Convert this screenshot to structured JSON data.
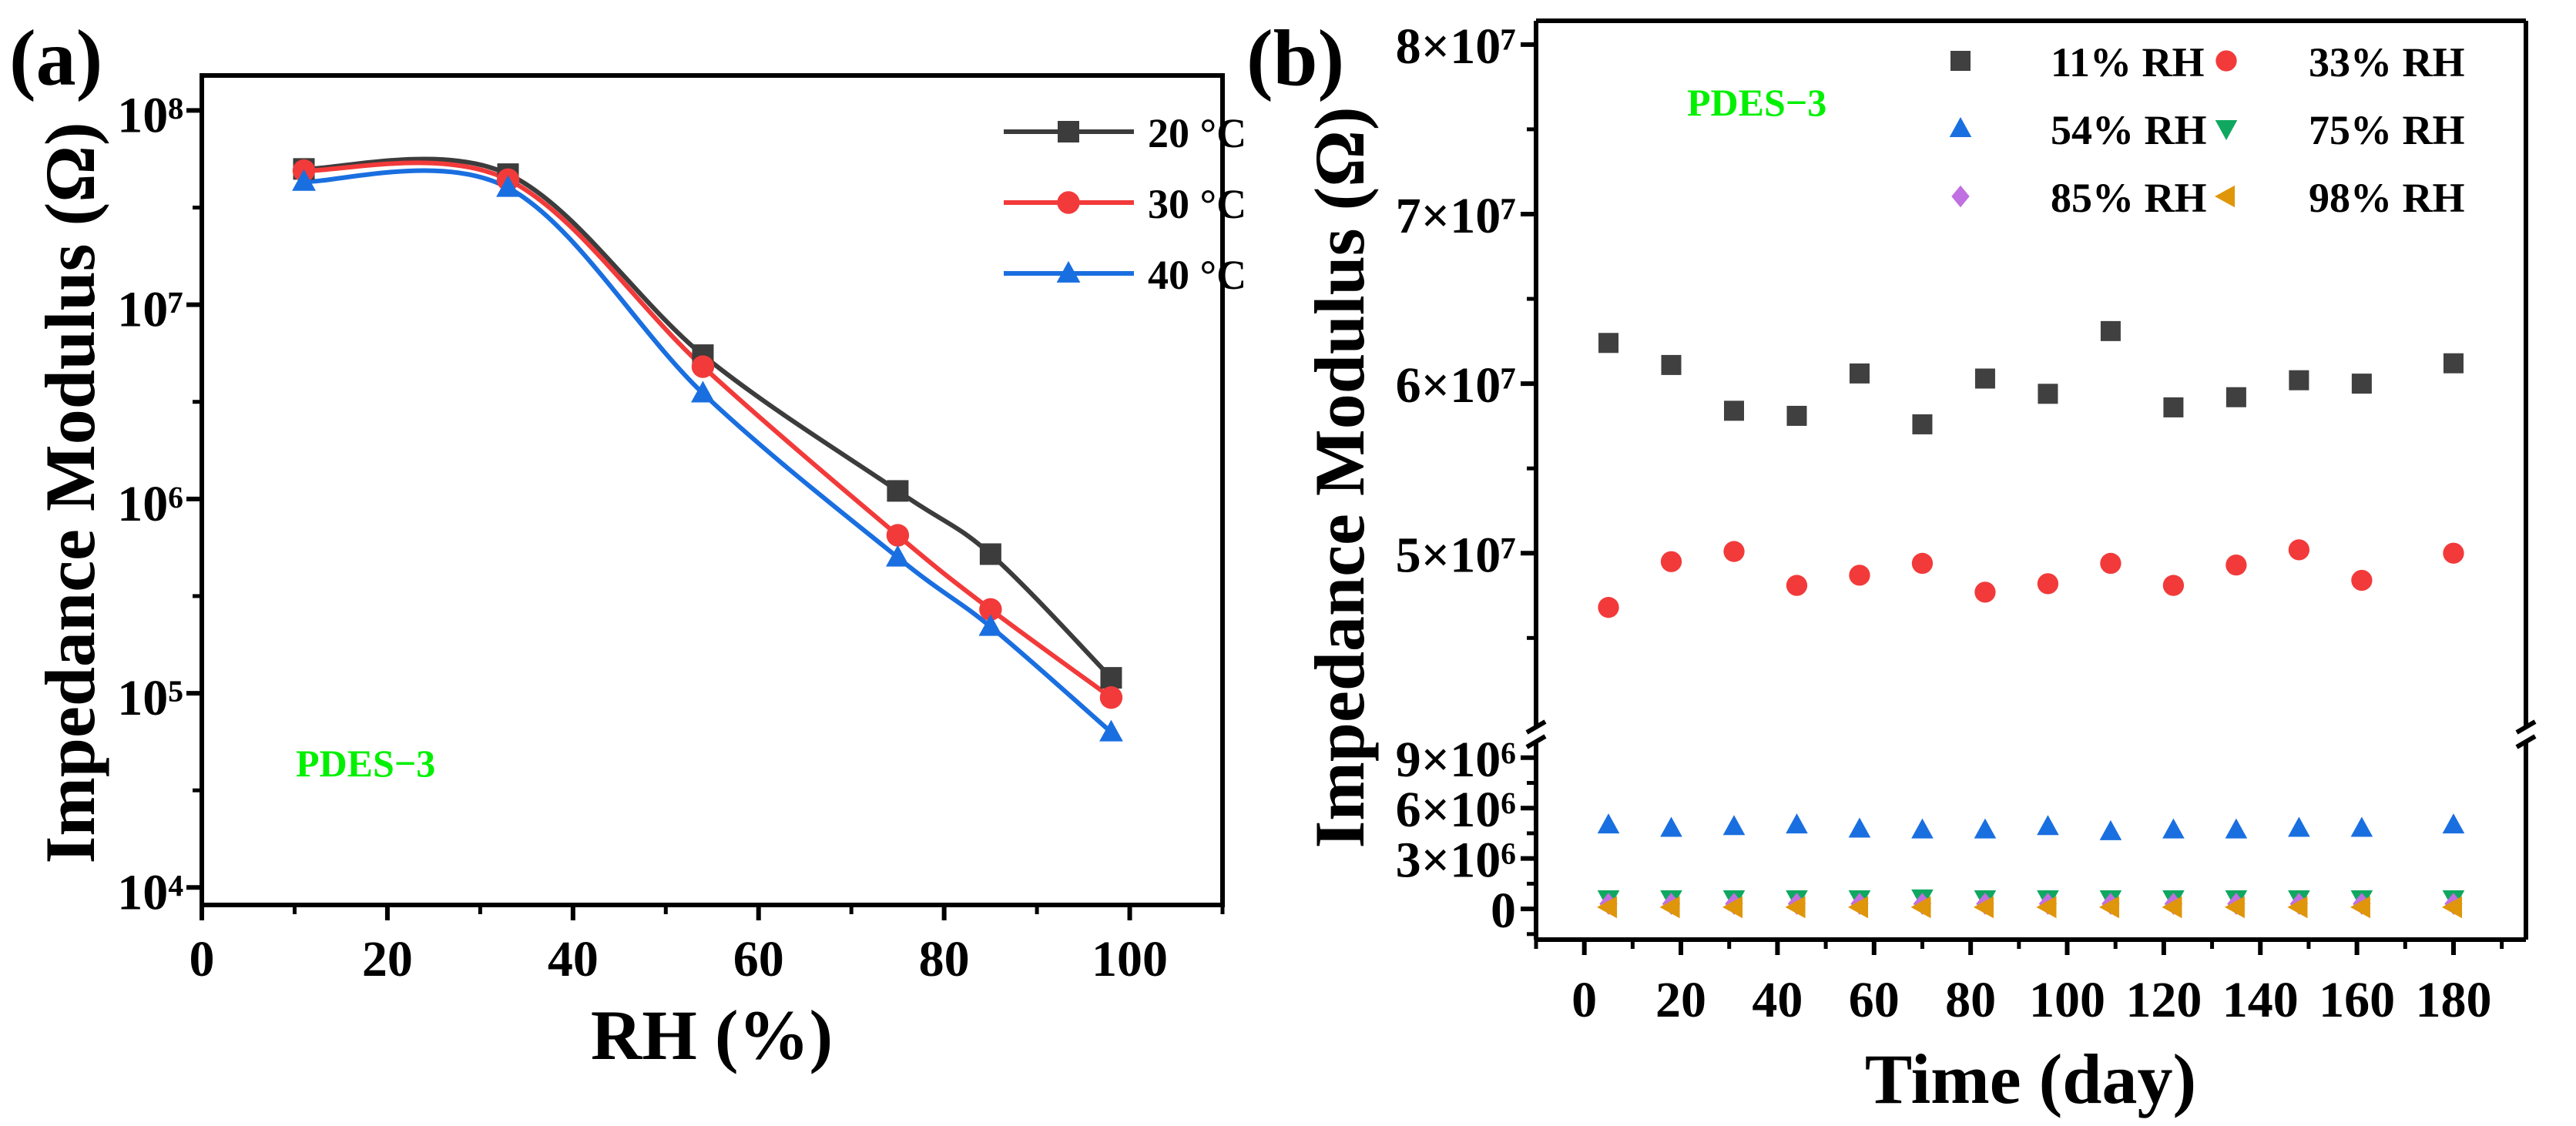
{
  "chart_data": [
    {
      "type": "line",
      "panel_label": "(a)",
      "title": "",
      "xlabel": "RH (%)",
      "ylabel": "Impedance Modulus (Ω)",
      "yscale": "log",
      "xlim": [
        0,
        110
      ],
      "ylim_log10": [
        3.91,
        8.18
      ],
      "x_ticks": [
        0,
        20,
        40,
        60,
        80,
        100
      ],
      "x_tick_labels": [
        "0",
        "20",
        "40",
        "60",
        "80",
        "100"
      ],
      "y_ticks_log10": [
        4,
        5,
        6,
        7,
        8
      ],
      "y_tick_labels": [
        "10⁴",
        "10⁵",
        "10⁶",
        "10⁷",
        "10⁸"
      ],
      "annotation": "PDES−3",
      "annotation_color": "#00f000",
      "legend_position": "top-right",
      "grid": false,
      "x": [
        11,
        33,
        54,
        75,
        85,
        98
      ],
      "series": [
        {
          "name": "20 °C",
          "color": "#3c3c3c",
          "marker": "square",
          "values": [
            50000000.0,
            47000000.0,
            5500000.0,
            1100000.0,
            520000.0,
            120000.0
          ]
        },
        {
          "name": "30 °C",
          "color": "#f23a3a",
          "marker": "circle",
          "values": [
            49000000.0,
            44000000.0,
            4800000.0,
            650000.0,
            270000.0,
            95000.0
          ]
        },
        {
          "name": "40 °C",
          "color": "#1a6fe0",
          "marker": "triangle",
          "values": [
            43000000.0,
            40000000.0,
            3500000.0,
            500000.0,
            220000.0,
            63000.0
          ]
        }
      ]
    },
    {
      "type": "scatter",
      "panel_label": "(b)",
      "title": "",
      "xlabel": "Time (day)",
      "ylabel": "Impedance Modulus (Ω)",
      "xlim": [
        -10,
        195
      ],
      "y_axis_break": true,
      "ylim_lower": [
        -1830000.0,
        10000000.0
      ],
      "ylim_upper": [
        39700000.0,
        81400000.0
      ],
      "x_ticks": [
        0,
        20,
        40,
        60,
        80,
        100,
        120,
        140,
        160,
        180
      ],
      "x_tick_labels": [
        "0",
        "20",
        "40",
        "60",
        "80",
        "100",
        "120",
        "140",
        "160",
        "180"
      ],
      "y_ticks_lower": [
        0,
        3000000.0,
        6000000.0,
        9000000.0
      ],
      "y_tick_labels_lower": [
        "0",
        "3×10⁶",
        "6×10⁶",
        "9×10⁶"
      ],
      "y_ticks_upper": [
        50000000.0,
        60000000.0,
        70000000.0,
        80000000.0
      ],
      "y_tick_labels_upper": [
        "5×10⁷",
        "6×10⁷",
        "7×10⁷",
        "8×10⁷"
      ],
      "annotation": "PDES−3",
      "annotation_color": "#00f000",
      "legend_position": "top-right",
      "grid": false,
      "x": [
        5,
        18,
        31,
        44,
        57,
        70,
        83,
        96,
        109,
        122,
        135,
        148,
        161,
        180
      ],
      "series": [
        {
          "name": "11% RH",
          "color": "#404040",
          "marker": "square",
          "values": [
            62400000.0,
            61100000.0,
            58400000.0,
            58100000.0,
            60600000.0,
            57600000.0,
            60300000.0,
            59400000.0,
            63100000.0,
            58600000.0,
            59200000.0,
            60200000.0,
            60000000.0,
            61200000.0
          ]
        },
        {
          "name": "33% RH",
          "color": "#f23a3a",
          "marker": "circle",
          "values": [
            46800000.0,
            49500000.0,
            50100000.0,
            48100000.0,
            48700000.0,
            49400000.0,
            47700000.0,
            48200000.0,
            49400000.0,
            48100000.0,
            49300000.0,
            50200000.0,
            48400000.0,
            50000000.0
          ]
        },
        {
          "name": "54% RH",
          "color": "#1a6fe0",
          "marker": "triangle",
          "values": [
            5000000.0,
            4800000.0,
            4900000.0,
            5000000.0,
            4750000.0,
            4700000.0,
            4700000.0,
            4900000.0,
            4600000.0,
            4700000.0,
            4700000.0,
            4800000.0,
            4800000.0,
            5000000.0
          ]
        },
        {
          "name": "75% RH",
          "color": "#10a860",
          "marker": "triangle-down",
          "values": [
            600000.0,
            600000.0,
            600000.0,
            600000.0,
            600000.0,
            650000.0,
            600000.0,
            600000.0,
            600000.0,
            600000.0,
            600000.0,
            600000.0,
            600000.0,
            600000.0
          ]
        },
        {
          "name": "85% RH",
          "color": "#c070e0",
          "marker": "diamond",
          "values": [
            300000.0,
            300000.0,
            300000.0,
            300000.0,
            300000.0,
            300000.0,
            300000.0,
            300000.0,
            300000.0,
            300000.0,
            300000.0,
            300000.0,
            300000.0,
            300000.0
          ]
        },
        {
          "name": "98% RH",
          "color": "#e0960a",
          "marker": "triangle-left",
          "values": [
            100000.0,
            100000.0,
            100000.0,
            100000.0,
            100000.0,
            100000.0,
            100000.0,
            100000.0,
            100000.0,
            100000.0,
            100000.0,
            100000.0,
            100000.0,
            100000.0
          ]
        }
      ]
    }
  ]
}
